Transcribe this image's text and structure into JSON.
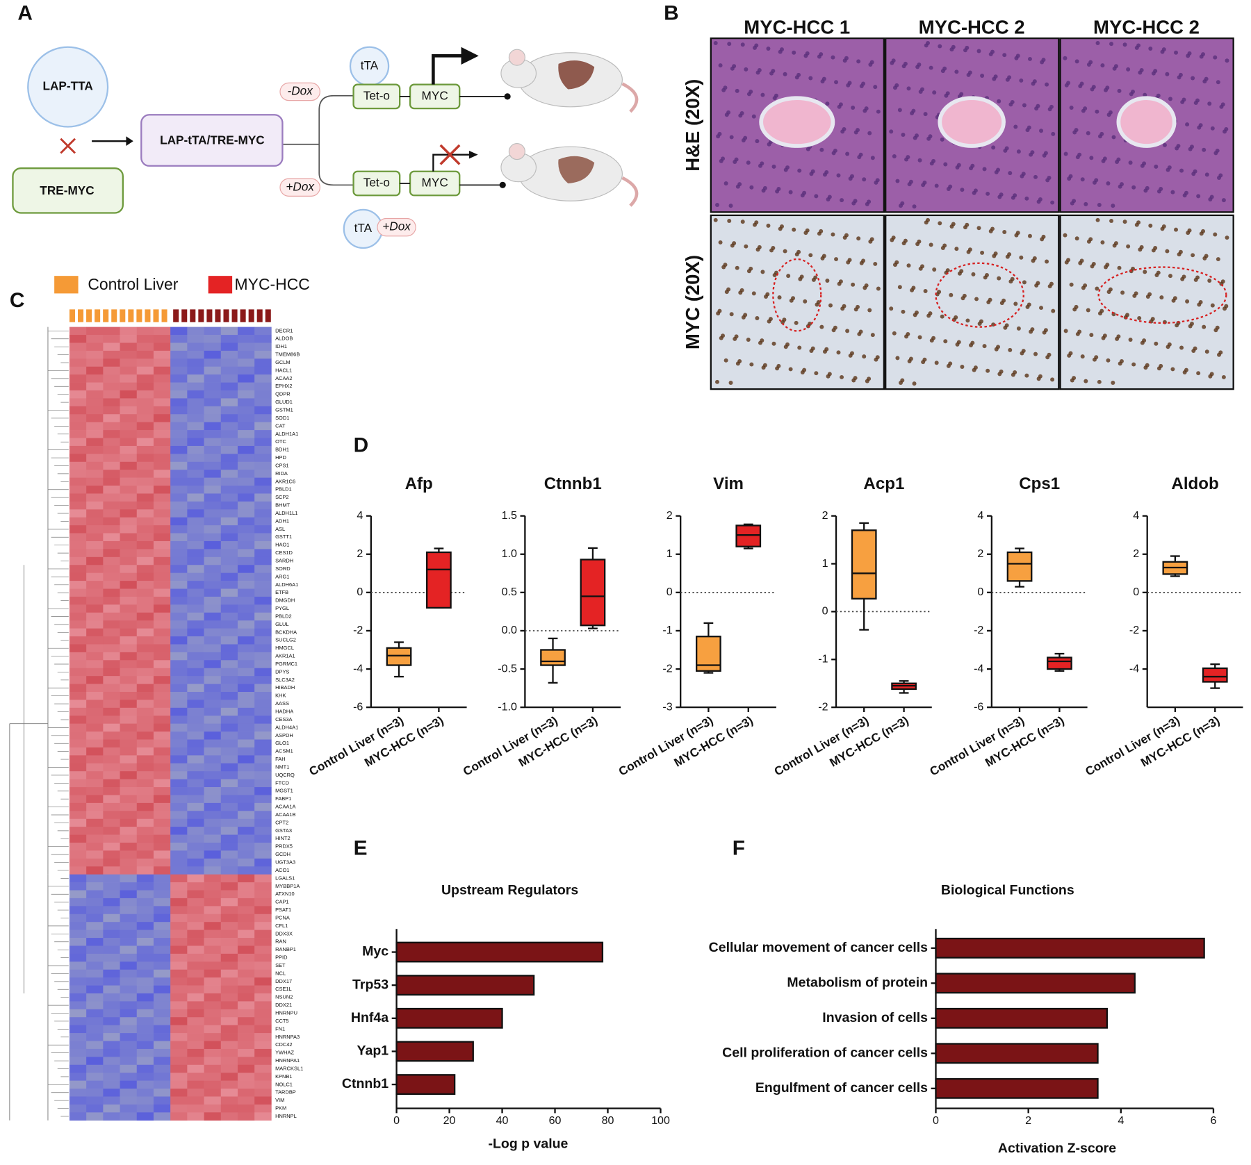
{
  "panel_labels": [
    "A",
    "B",
    "C",
    "D",
    "E",
    "F"
  ],
  "diagram": {
    "lap_tta": "LAP-TTA",
    "tre_myc": "TRE-MYC",
    "cross": "LAP-tTA/TRE-MYC",
    "minus_dox": "-Dox",
    "plus_dox": "+Dox",
    "tta_top": "tTA",
    "teto_top": "Tet-o",
    "myc_top": "MYC",
    "teto_bottom": "Tet-o",
    "myc_bottom": "MYC",
    "tta_bottom": "tTA",
    "plus_dox_bottom": "+Dox"
  },
  "histology": {
    "columns": [
      "MYC-HCC 1",
      "MYC-HCC 2",
      "MYC-HCC 2"
    ],
    "rows": [
      "H&E (20X)",
      "MYC (20X)"
    ]
  },
  "heatmap": {
    "legend": [
      {
        "name": "Control Liver",
        "color": "#f59a36"
      },
      {
        "name": "MYC-HCC",
        "color": "#e42324"
      }
    ],
    "clusters": [
      {
        "genes": [
          "DECR1",
          "ALDOB",
          "IDH1",
          "TMEM86B",
          "GCLM",
          "HACL1",
          "ACAA2",
          "EPHX2",
          "QDPR",
          "GLUD1",
          "GSTM1",
          "SOD1",
          "CAT",
          "ALDH1A1",
          "OTC",
          "BDH1",
          "HPD",
          "CPS1",
          "RIDA",
          "AKR1C6",
          "PBLD1",
          "SCP2",
          "BHMT",
          "ALDH1L1",
          "ADH1",
          "ASL",
          "GSTT1",
          "HAO1",
          "CES1D",
          "SARDH",
          "SORD",
          "ARG1",
          "ALDH6A1",
          "ETFB",
          "DMGDH",
          "PYGL",
          "PBLD2",
          "GLUL",
          "BCKDHA",
          "SUCLG2",
          "HMGCL",
          "AKR1A1",
          "PGRMC1",
          "DPYS",
          "SLC3A2",
          "HIBADH",
          "KHK",
          "AASS",
          "HADHA",
          "CES3A",
          "ALDH4A1",
          "ASPDH",
          "GLO1",
          "ACSM1",
          "FAH",
          "NMT1",
          "UQCRQ",
          "FTCD",
          "MGST1",
          "FABP1",
          "ACAA1A",
          "ACAA1B",
          "CPT2",
          "GSTA3",
          "HINT2",
          "PRDX5",
          "GCDH",
          "UGT3A3",
          "ACO1"
        ]
      },
      {
        "genes": [
          "LGALS1",
          "MYBBP1A",
          "ATXN10",
          "CAP1",
          "PSAT1",
          "PCNA",
          "CFL1",
          "DDX3X",
          "RAN",
          "RANBP1",
          "PPID",
          "SET",
          "NCL",
          "DDX17",
          "CSE1L",
          "NSUN2",
          "DDX21",
          "HNRNPU",
          "CCT5",
          "FN1",
          "HNRNPA3",
          "CDC42",
          "YWHAZ",
          "HNRNPA1",
          "MARCKSL1",
          "KPNB1",
          "NOLC1",
          "TARDBP",
          "VIM",
          "PKM",
          "HNRNPL"
        ]
      }
    ]
  },
  "chart_data": [
    {
      "type": "box",
      "title": "Afp",
      "categories": [
        "Control Liver (n=3)",
        "MYC-HCC (n=3)"
      ],
      "colors": [
        "#f7a040",
        "#e42324"
      ],
      "values": [
        {
          "min": -4.4,
          "q1": -3.8,
          "median": -3.3,
          "q3": -2.9,
          "max": -2.6
        },
        {
          "min": -0.8,
          "q1": -0.8,
          "median": 1.2,
          "q3": 2.1,
          "max": 2.3
        }
      ],
      "ylim": [
        -6,
        4
      ],
      "yticks": [
        -6,
        -4,
        -2,
        0,
        2,
        4
      ],
      "zero_line": true
    },
    {
      "type": "box",
      "title": "Ctnnb1",
      "categories": [
        "Control Liver (n=3)",
        "MYC-HCC (n=3)"
      ],
      "colors": [
        "#f7a040",
        "#e42324"
      ],
      "values": [
        {
          "min": -0.68,
          "q1": -0.45,
          "median": -0.4,
          "q3": -0.25,
          "max": -0.1
        },
        {
          "min": 0.03,
          "q1": 0.07,
          "median": 0.45,
          "q3": 0.93,
          "max": 1.08
        }
      ],
      "ylim": [
        -1,
        1.5
      ],
      "yticks": [
        {
          "value": -1,
          "label": "-1.0"
        },
        -0.5,
        {
          "value": 0,
          "label": "0.0"
        },
        0.5,
        {
          "value": 1,
          "label": "1.0"
        },
        1.5
      ],
      "zero_line": true
    },
    {
      "type": "box",
      "title": "Vim",
      "categories": [
        "Control Liver (n=3)",
        "MYC-HCC (n=3)"
      ],
      "colors": [
        "#f7a040",
        "#e42324"
      ],
      "values": [
        {
          "min": -2.1,
          "q1": -2.05,
          "median": -1.9,
          "q3": -1.15,
          "max": -0.8
        },
        {
          "min": 1.15,
          "q1": 1.2,
          "median": 1.5,
          "q3": 1.75,
          "max": 1.78
        }
      ],
      "ylim": [
        -3,
        2
      ],
      "yticks": [
        -3,
        -2,
        -1,
        0,
        1,
        2
      ],
      "zero_line": true
    },
    {
      "type": "box",
      "title": "Acp1",
      "categories": [
        "Control Liver (n=3)",
        "MYC-HCC (n=3)"
      ],
      "colors": [
        "#f7a040",
        "#e42324"
      ],
      "values": [
        {
          "min": -0.38,
          "q1": 0.27,
          "median": 0.8,
          "q3": 1.7,
          "max": 1.85
        },
        {
          "min": -1.7,
          "q1": -1.62,
          "median": -1.55,
          "q3": -1.5,
          "max": -1.45
        }
      ],
      "ylim": [
        -2,
        2
      ],
      "yticks": [
        -2,
        -1,
        0,
        1,
        2
      ],
      "zero_line": true
    },
    {
      "type": "box",
      "title": "Cps1",
      "categories": [
        "Control Liver (n=3)",
        "MYC-HCC (n=3)"
      ],
      "colors": [
        "#f7a040",
        "#e42324"
      ],
      "values": [
        {
          "min": 0.3,
          "q1": 0.6,
          "median": 1.5,
          "q3": 2.1,
          "max": 2.3
        },
        {
          "min": -4.1,
          "q1": -4.0,
          "median": -3.6,
          "q3": -3.4,
          "max": -3.2
        }
      ],
      "ylim": [
        -6,
        4
      ],
      "yticks": [
        -6,
        -4,
        -2,
        0,
        2,
        4
      ],
      "zero_line": true
    },
    {
      "type": "box",
      "title": "Aldob",
      "categories": [
        "Control Liver (n=3)",
        "MYC-HCC (n=3)"
      ],
      "colors": [
        "#f7a040",
        "#e42324"
      ],
      "values": [
        {
          "min": 0.85,
          "q1": 0.96,
          "median": 1.3,
          "q3": 1.6,
          "max": 1.9
        },
        {
          "min": -5.0,
          "q1": -4.67,
          "median": -4.4,
          "q3": -3.96,
          "max": -3.75
        }
      ],
      "ylim": [
        -6,
        4
      ],
      "yticks": [
        -4,
        -2,
        0,
        2,
        4
      ],
      "zero_line": true
    },
    {
      "type": "barh",
      "title": "Upstream Regulators",
      "categories": [
        "Myc",
        "Trp53",
        "Hnf4a",
        "Yap1",
        "Ctnnb1"
      ],
      "values": [
        78,
        52,
        40,
        29,
        22
      ],
      "color": "#7b1416",
      "xlim": [
        0,
        100
      ],
      "xticks": [
        0,
        20,
        40,
        60,
        80,
        100
      ],
      "xlabel": "-Log p value"
    },
    {
      "type": "barh",
      "title": "Biological Functions",
      "categories": [
        "Cellular movement of cancer cells",
        "Metabolism of protein",
        "Invasion of cells",
        "Cell proliferation of cancer cells",
        "Engulfment of cancer cells"
      ],
      "values": [
        5.8,
        4.3,
        3.7,
        3.5,
        3.5
      ],
      "color": "#7b1416",
      "xlim": [
        0,
        6
      ],
      "xticks": [
        0,
        2,
        4,
        6
      ],
      "xlabel": "Activation Z-score"
    }
  ]
}
